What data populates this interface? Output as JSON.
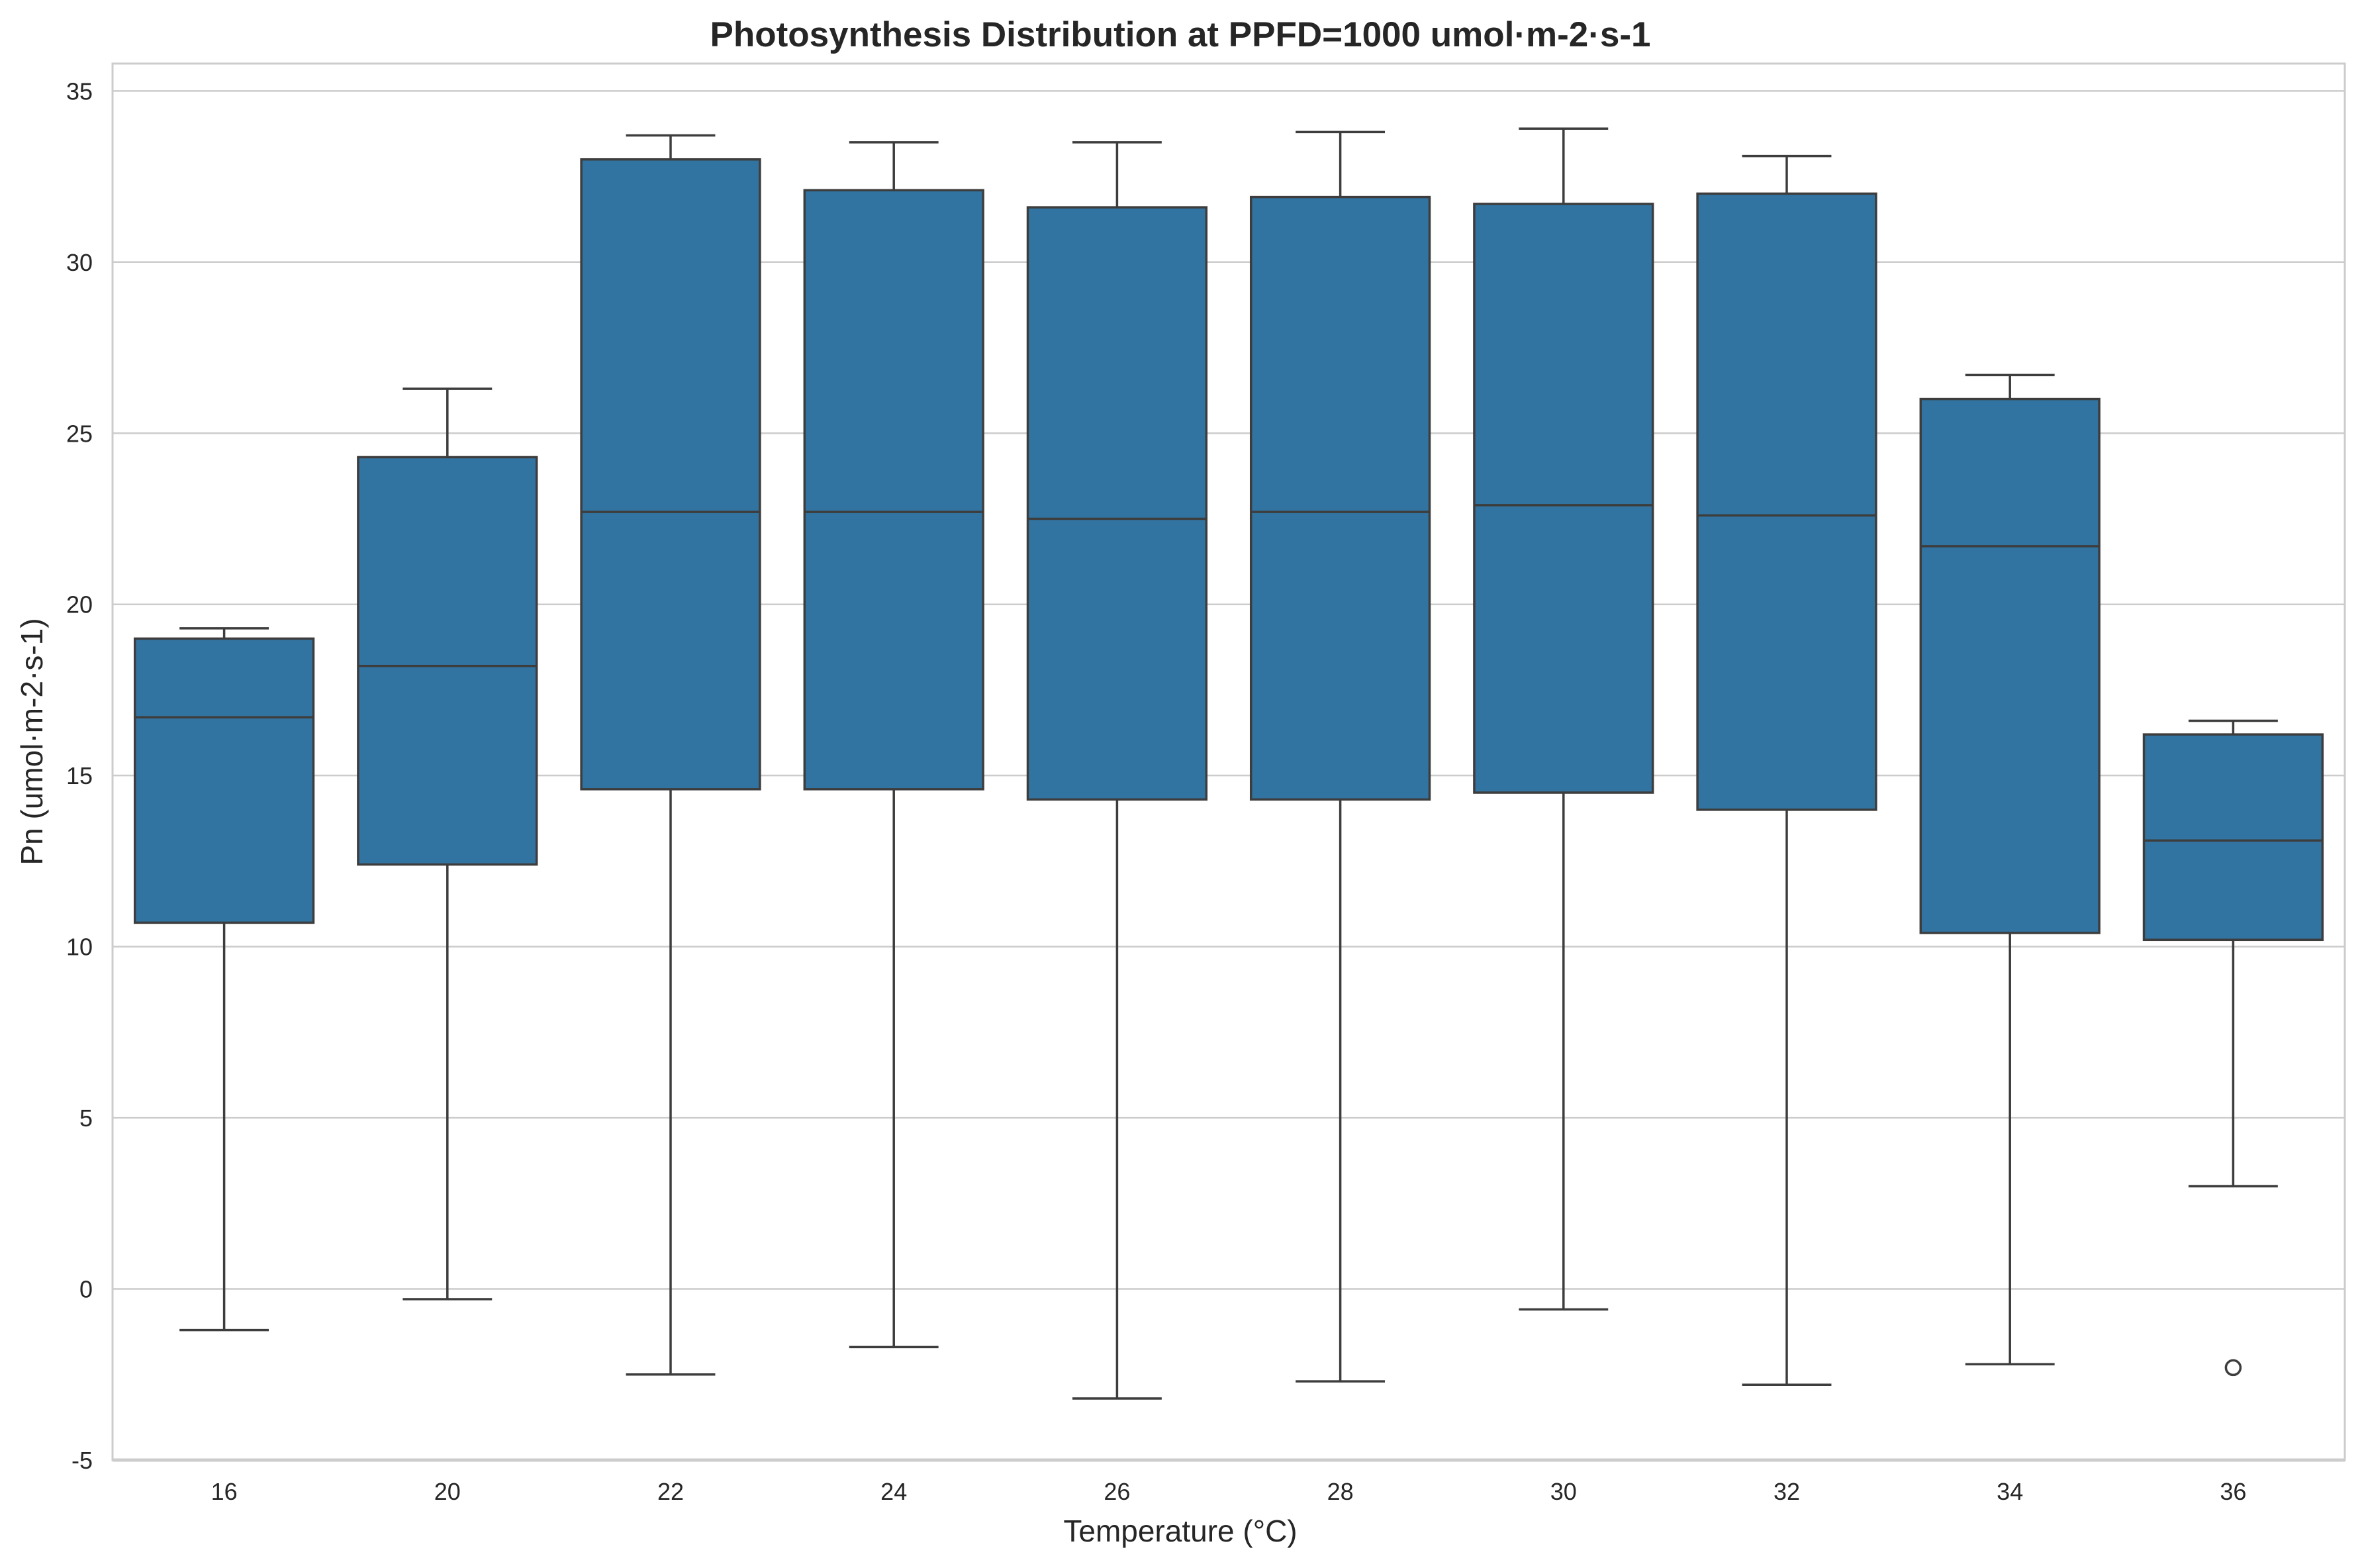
{
  "chart_data": {
    "type": "box",
    "title": "Photosynthesis Distribution at PPFD=1000 umol·m-2·s-1",
    "xlabel": "Temperature (°C)",
    "ylabel": "Pn (umol·m-2·s-1)",
    "ylim": [
      -5,
      35.8
    ],
    "y_ticks": [
      -5,
      0,
      5,
      10,
      15,
      20,
      25,
      30,
      35
    ],
    "grid": "horizontal",
    "box_color": "#3274a1",
    "line_color": "#3d3d3d",
    "grid_color": "#cccccc",
    "spine_color": "#cccccc",
    "categories": [
      "16",
      "20",
      "22",
      "24",
      "26",
      "28",
      "30",
      "32",
      "34",
      "36"
    ],
    "boxes": [
      {
        "category": "16",
        "whisker_low": -1.2,
        "q1": 10.7,
        "median": 16.7,
        "q3": 19.0,
        "whisker_high": 19.3,
        "outliers": []
      },
      {
        "category": "20",
        "whisker_low": -0.3,
        "q1": 12.4,
        "median": 18.2,
        "q3": 24.3,
        "whisker_high": 26.3,
        "outliers": []
      },
      {
        "category": "22",
        "whisker_low": -2.5,
        "q1": 14.6,
        "median": 22.7,
        "q3": 33.0,
        "whisker_high": 33.7,
        "outliers": []
      },
      {
        "category": "24",
        "whisker_low": -1.7,
        "q1": 14.6,
        "median": 22.7,
        "q3": 32.1,
        "whisker_high": 33.5,
        "outliers": []
      },
      {
        "category": "26",
        "whisker_low": -3.2,
        "q1": 14.3,
        "median": 22.5,
        "q3": 31.6,
        "whisker_high": 33.5,
        "outliers": []
      },
      {
        "category": "28",
        "whisker_low": -2.7,
        "q1": 14.3,
        "median": 22.7,
        "q3": 31.9,
        "whisker_high": 33.8,
        "outliers": []
      },
      {
        "category": "30",
        "whisker_low": -0.6,
        "q1": 14.5,
        "median": 22.9,
        "q3": 31.7,
        "whisker_high": 33.9,
        "outliers": []
      },
      {
        "category": "32",
        "whisker_low": -2.8,
        "q1": 14.0,
        "median": 22.6,
        "q3": 32.0,
        "whisker_high": 33.1,
        "outliers": []
      },
      {
        "category": "34",
        "whisker_low": -2.2,
        "q1": 10.4,
        "median": 21.7,
        "q3": 26.0,
        "whisker_high": 26.7,
        "outliers": []
      },
      {
        "category": "36",
        "whisker_low": 3.0,
        "q1": 10.2,
        "median": 13.1,
        "q3": 16.2,
        "whisker_high": 16.6,
        "outliers": [
          -2.3
        ]
      }
    ]
  }
}
